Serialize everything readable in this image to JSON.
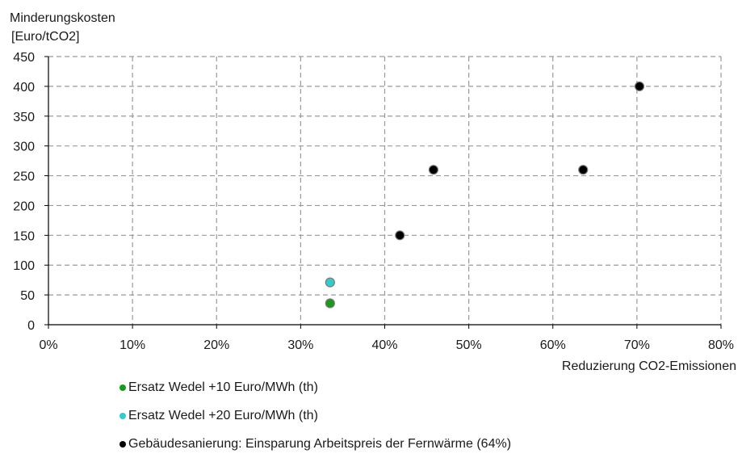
{
  "chart_data": {
    "type": "scatter",
    "ylabel_line1": "Minderungskosten",
    "ylabel_line2": "[Euro/tCO2]",
    "xlabel": "Reduzierung CO2-Emissionen",
    "xlim": [
      0,
      80
    ],
    "ylim": [
      0,
      450
    ],
    "xticks": [
      "0%",
      "10%",
      "20%",
      "30%",
      "40%",
      "50%",
      "60%",
      "70%",
      "80%"
    ],
    "yticks": [
      "0",
      "50",
      "100",
      "150",
      "200",
      "250",
      "300",
      "350",
      "400",
      "450"
    ],
    "grid": true,
    "legend_position": "bottom",
    "series": [
      {
        "name": "Ersatz Wedel +10 Euro/MWh (th)",
        "color": "#1a9a1a",
        "points": [
          {
            "x": 33.5,
            "y": 36
          }
        ]
      },
      {
        "name": "Ersatz Wedel +20 Euro/MWh (th)",
        "color": "#33cccc",
        "points": [
          {
            "x": 33.5,
            "y": 71
          }
        ]
      },
      {
        "name": "Gebäudesanierung: Einsparung Arbeitspreis der Fernwärme (64%)",
        "color": "#000000",
        "points": [
          {
            "x": 41.8,
            "y": 150
          },
          {
            "x": 45.8,
            "y": 260
          },
          {
            "x": 63.6,
            "y": 260
          },
          {
            "x": 70.3,
            "y": 400
          }
        ]
      }
    ]
  }
}
